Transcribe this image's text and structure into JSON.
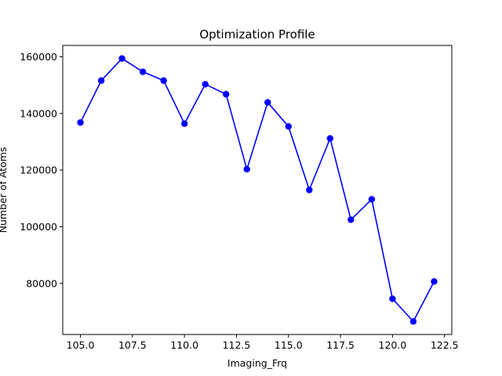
{
  "chart_data": {
    "type": "line",
    "title": "Optimization Profile",
    "xlabel": "Imaging_Frq",
    "ylabel": "Number of Atoms",
    "xlim": [
      104.15,
      122.85
    ],
    "ylim": [
      62000,
      164000
    ],
    "grid": false,
    "legend": "none",
    "x_ticks": [
      105.0,
      107.5,
      110.0,
      112.5,
      115.0,
      117.5,
      120.0,
      122.5
    ],
    "x_tick_labels": [
      "105.0",
      "107.5",
      "110.0",
      "112.5",
      "115.0",
      "117.5",
      "120.0",
      "122.5"
    ],
    "y_ticks": [
      80000,
      100000,
      120000,
      140000,
      160000
    ],
    "y_tick_labels": [
      "80000",
      "100000",
      "120000",
      "140000",
      "160000"
    ],
    "series": [
      {
        "color": "#0000ff",
        "marker": "circle",
        "x": [
          105,
          106,
          107,
          108,
          109,
          110,
          111,
          112,
          113,
          114,
          115,
          116,
          117,
          118,
          119,
          120,
          121,
          122
        ],
        "y": [
          136800,
          151600,
          159400,
          154700,
          151600,
          136400,
          150300,
          146800,
          120300,
          143900,
          135400,
          113000,
          131200,
          102500,
          109700,
          74600,
          66600,
          80700
        ]
      }
    ]
  }
}
